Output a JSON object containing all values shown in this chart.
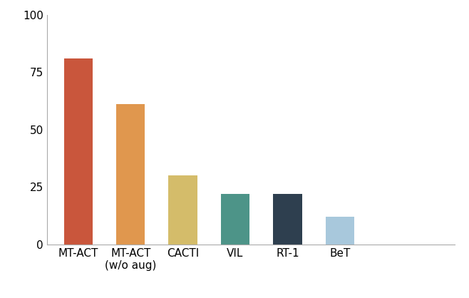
{
  "categories": [
    "MT-ACT",
    "MT-ACT\n(w/o aug)",
    "CACTI",
    "VIL",
    "RT-1",
    "BeT"
  ],
  "values": [
    81,
    61,
    30,
    22,
    22,
    12
  ],
  "bar_colors": [
    "#c9563c",
    "#e0974e",
    "#d4bc6a",
    "#4d9488",
    "#2e3f4f",
    "#a8c8dc"
  ],
  "ylim": [
    0,
    100
  ],
  "yticks": [
    0,
    25,
    50,
    75,
    100
  ],
  "background_color": "#ffffff",
  "bar_width": 0.55,
  "tick_fontsize": 11,
  "label_fontsize": 11
}
